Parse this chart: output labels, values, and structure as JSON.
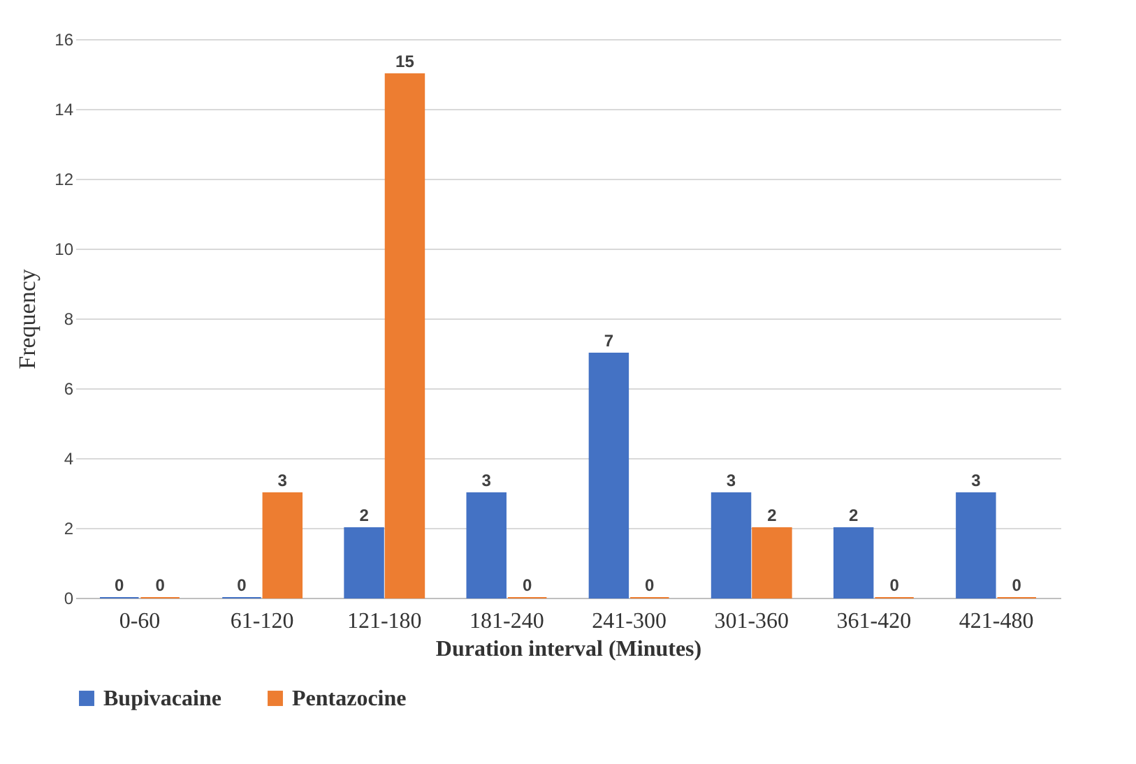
{
  "chart_data": {
    "type": "bar",
    "xlabel": "Duration interval (Minutes)",
    "ylabel": "Frequency",
    "categories": [
      "0-60",
      "61-120",
      "121-180",
      "181-240",
      "241-300",
      "301-360",
      "361-420",
      "421-480"
    ],
    "series": [
      {
        "name": "Bupivacaine",
        "color": "#4472c4",
        "values": [
          0,
          0,
          2,
          3,
          7,
          3,
          2,
          3
        ]
      },
      {
        "name": "Pentazocine",
        "color": "#ed7d31",
        "values": [
          0,
          3,
          15,
          0,
          0,
          2,
          0,
          0
        ]
      }
    ],
    "ylim": [
      0,
      16
    ],
    "yticks": [
      0,
      2,
      4,
      6,
      8,
      10,
      12,
      14,
      16
    ],
    "grid": "y",
    "legend": "bottom",
    "data_labels": true
  }
}
